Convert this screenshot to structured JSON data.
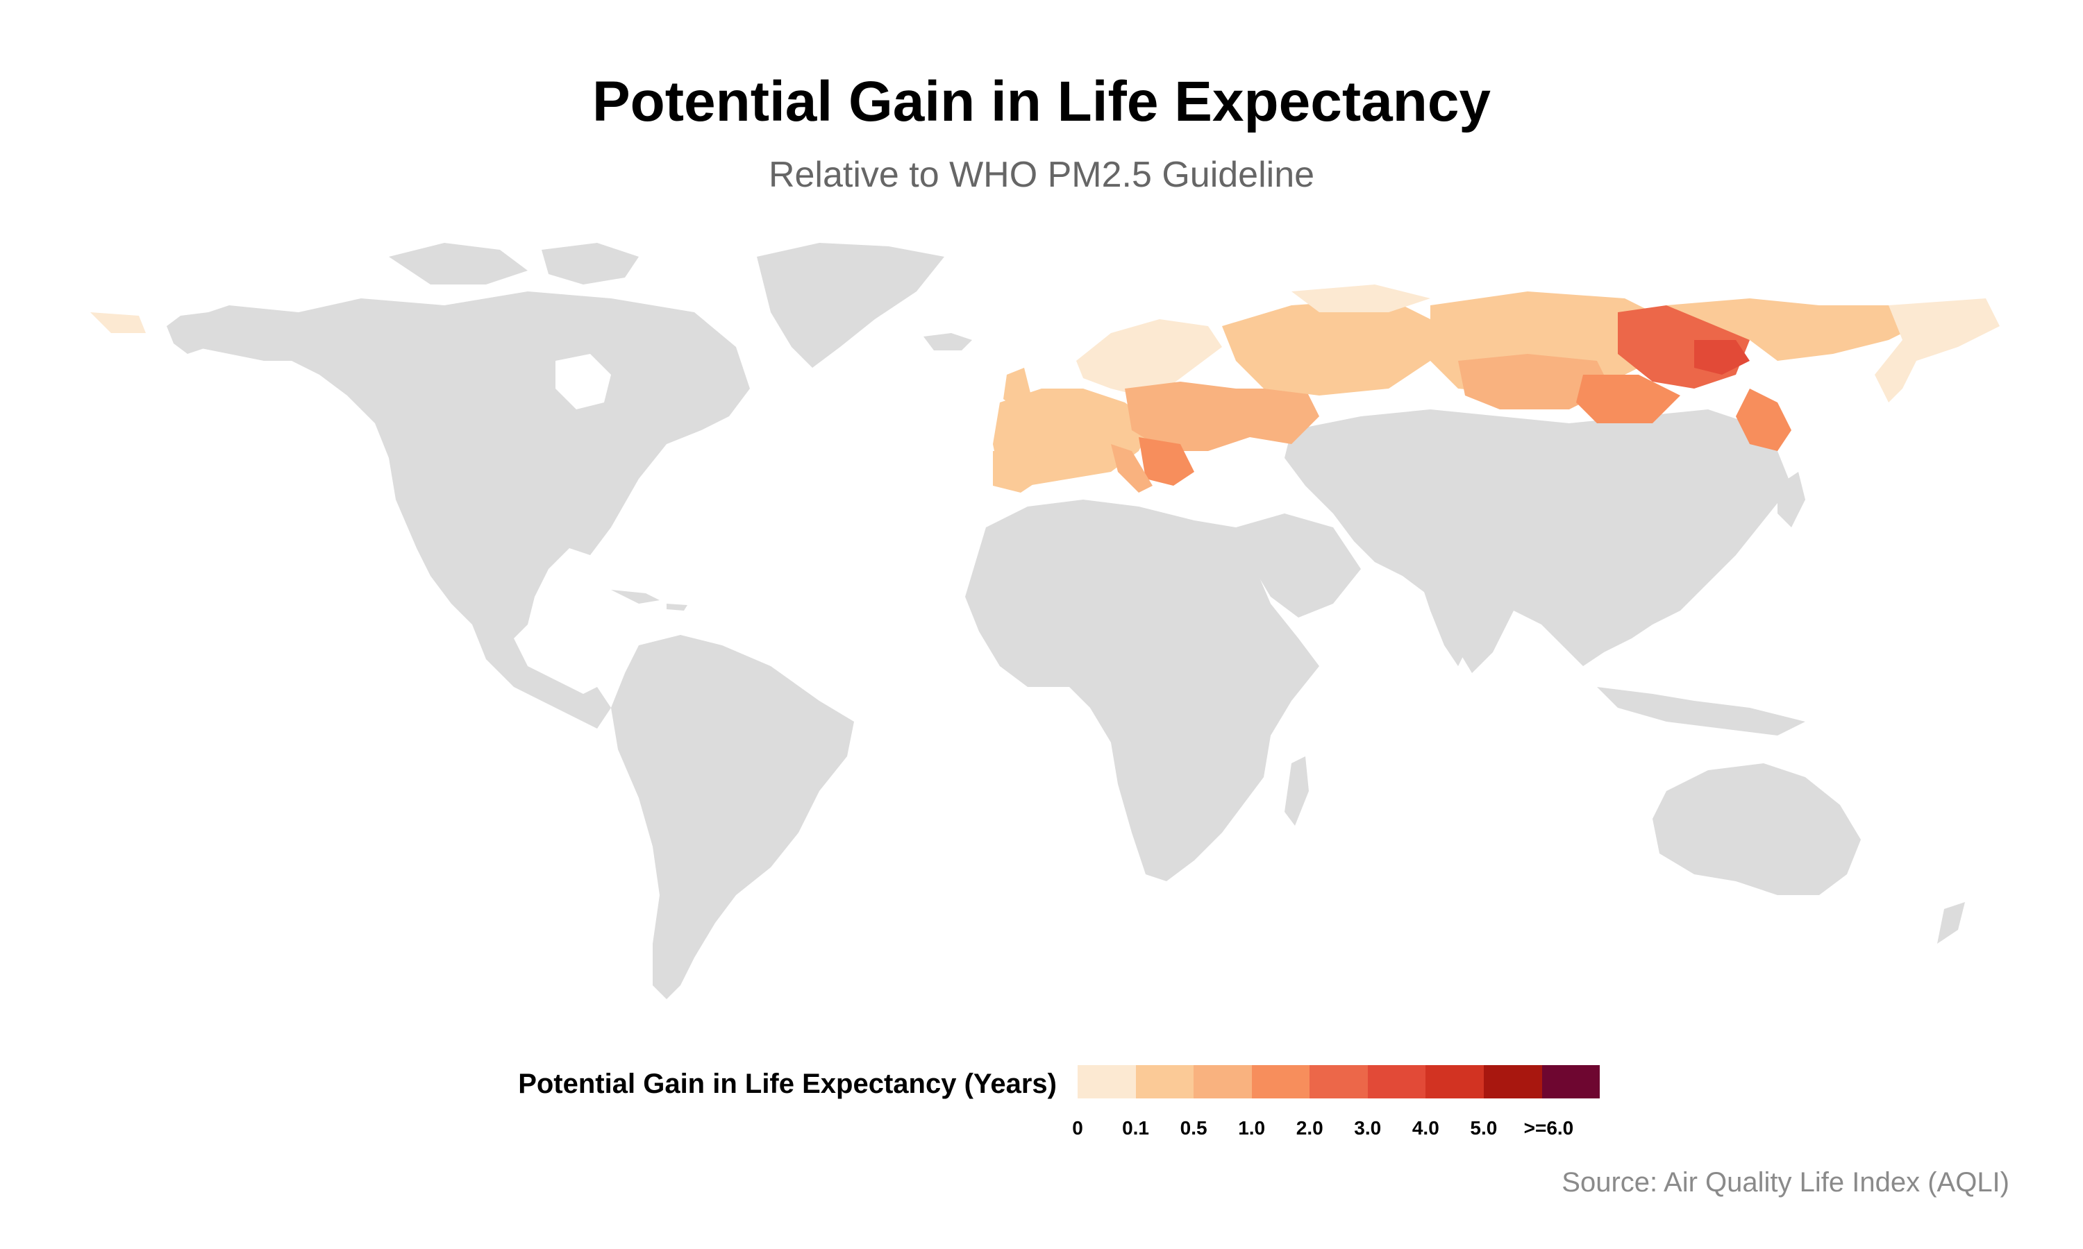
{
  "title": "Potential Gain in Life Expectancy",
  "subtitle": "Relative to WHO PM2.5 Guideline",
  "legend": {
    "title": "Potential Gain in Life Expectancy (Years)",
    "ticks": [
      "0",
      "0.1",
      "0.5",
      "1.0",
      "2.0",
      "3.0",
      "4.0",
      "5.0",
      ">=6.0"
    ],
    "colors": [
      "#fce9d2",
      "#fbca97",
      "#f9b27f",
      "#f78e5c",
      "#ec6749",
      "#e24a37",
      "#d23322",
      "#a8170f",
      "#6e0630"
    ]
  },
  "source": "Source: Air Quality Life Index (AQLI)",
  "map": {
    "no_data_color": "#dcdcdc",
    "highlighted_regions": [
      {
        "name": "Europe",
        "level_range": [
          "0.1",
          "2.0"
        ]
      },
      {
        "name": "Russia",
        "level_range": [
          "0.1",
          "4.0"
        ]
      }
    ]
  }
}
